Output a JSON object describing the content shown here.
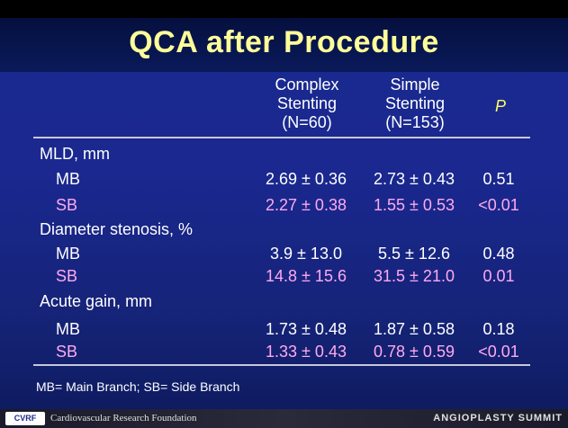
{
  "title": "QCA after Procedure",
  "columns": {
    "complex": [
      "Complex",
      "Stenting",
      "(N=60)"
    ],
    "simple": [
      "Simple",
      "Stenting",
      "(N=153)"
    ],
    "p": "P"
  },
  "rows": [
    {
      "label": "MLD, mm",
      "type": "section"
    },
    {
      "label": "MB",
      "type": "mb",
      "complex": "2.69 ± 0.36",
      "simple": "2.73 ± 0.43",
      "p": "0.51"
    },
    {
      "label": "SB",
      "type": "sb",
      "complex": "2.27 ± 0.38",
      "simple": "1.55 ± 0.53",
      "p": "<0.01"
    },
    {
      "label": "Diameter stenosis, %",
      "type": "section"
    },
    {
      "label": "MB",
      "type": "mb",
      "complex": "3.9 ± 13.0",
      "simple": "5.5 ± 12.6",
      "p": "0.48"
    },
    {
      "label": "SB",
      "type": "sb",
      "complex": "14.8 ± 15.6",
      "simple": "31.5 ± 21.0",
      "p": "0.01"
    },
    {
      "label": "Acute gain, mm",
      "type": "section"
    },
    {
      "label": "MB",
      "type": "mb",
      "complex": "1.73 ± 0.48",
      "simple": "1.87 ± 0.58",
      "p": "0.18"
    },
    {
      "label": "SB",
      "type": "sb",
      "complex": "1.33 ± 0.43",
      "simple": "0.78 ± 0.59",
      "p": "<0.01"
    }
  ],
  "footnote": "MB= Main Branch; SB= Side Branch",
  "footer": {
    "logo": "CVRF",
    "organization": "Cardiovascular Research Foundation",
    "event": "ANGIOPLASTY SUMMIT"
  }
}
